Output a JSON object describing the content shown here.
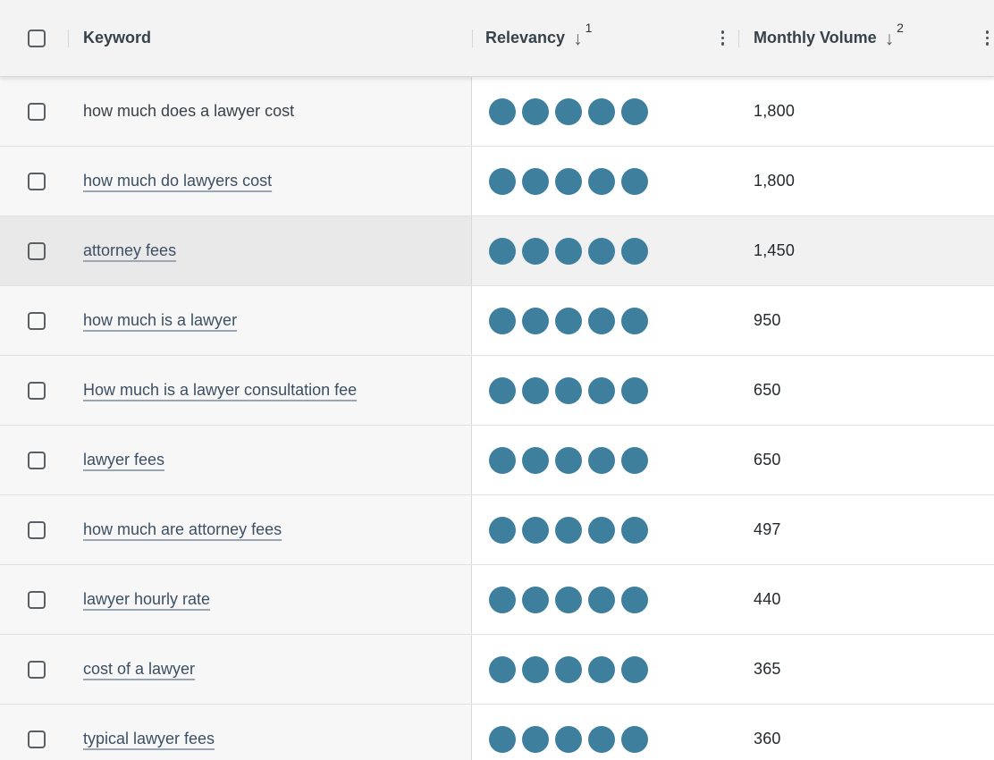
{
  "header": {
    "keyword": {
      "label": "Keyword"
    },
    "relevancy": {
      "label": "Relevancy",
      "sort_arrow": "↓",
      "sort_rank": "1"
    },
    "monthly_volume": {
      "label": "Monthly Volume",
      "sort_arrow": "↓",
      "sort_rank": "2"
    }
  },
  "colors": {
    "relevancy_dot": "#3e7f9d",
    "link_text": "#3d4f63",
    "keyword_column_bg": "#f7f7f7",
    "highlight_row_bg": "#f1f1f1",
    "header_bg": "#f3f3f3"
  },
  "rows": [
    {
      "keyword": "how much does a lawyer cost",
      "is_link": false,
      "relevancy": 5,
      "monthly_volume": "1,800",
      "highlighted": false
    },
    {
      "keyword": "how much do lawyers cost",
      "is_link": true,
      "relevancy": 5,
      "monthly_volume": "1,800",
      "highlighted": false
    },
    {
      "keyword": "attorney fees",
      "is_link": true,
      "relevancy": 5,
      "monthly_volume": "1,450",
      "highlighted": true
    },
    {
      "keyword": "how much is a lawyer",
      "is_link": true,
      "relevancy": 5,
      "monthly_volume": "950",
      "highlighted": false
    },
    {
      "keyword": "How much is a lawyer consultation fee",
      "is_link": true,
      "relevancy": 5,
      "monthly_volume": "650",
      "highlighted": false
    },
    {
      "keyword": "lawyer fees",
      "is_link": true,
      "relevancy": 5,
      "monthly_volume": "650",
      "highlighted": false
    },
    {
      "keyword": "how much are attorney fees",
      "is_link": true,
      "relevancy": 5,
      "monthly_volume": "497",
      "highlighted": false
    },
    {
      "keyword": "lawyer hourly rate",
      "is_link": true,
      "relevancy": 5,
      "monthly_volume": "440",
      "highlighted": false
    },
    {
      "keyword": "cost of a lawyer",
      "is_link": true,
      "relevancy": 5,
      "monthly_volume": "365",
      "highlighted": false
    },
    {
      "keyword": "typical lawyer fees",
      "is_link": true,
      "relevancy": 5,
      "monthly_volume": "360",
      "highlighted": false
    }
  ]
}
